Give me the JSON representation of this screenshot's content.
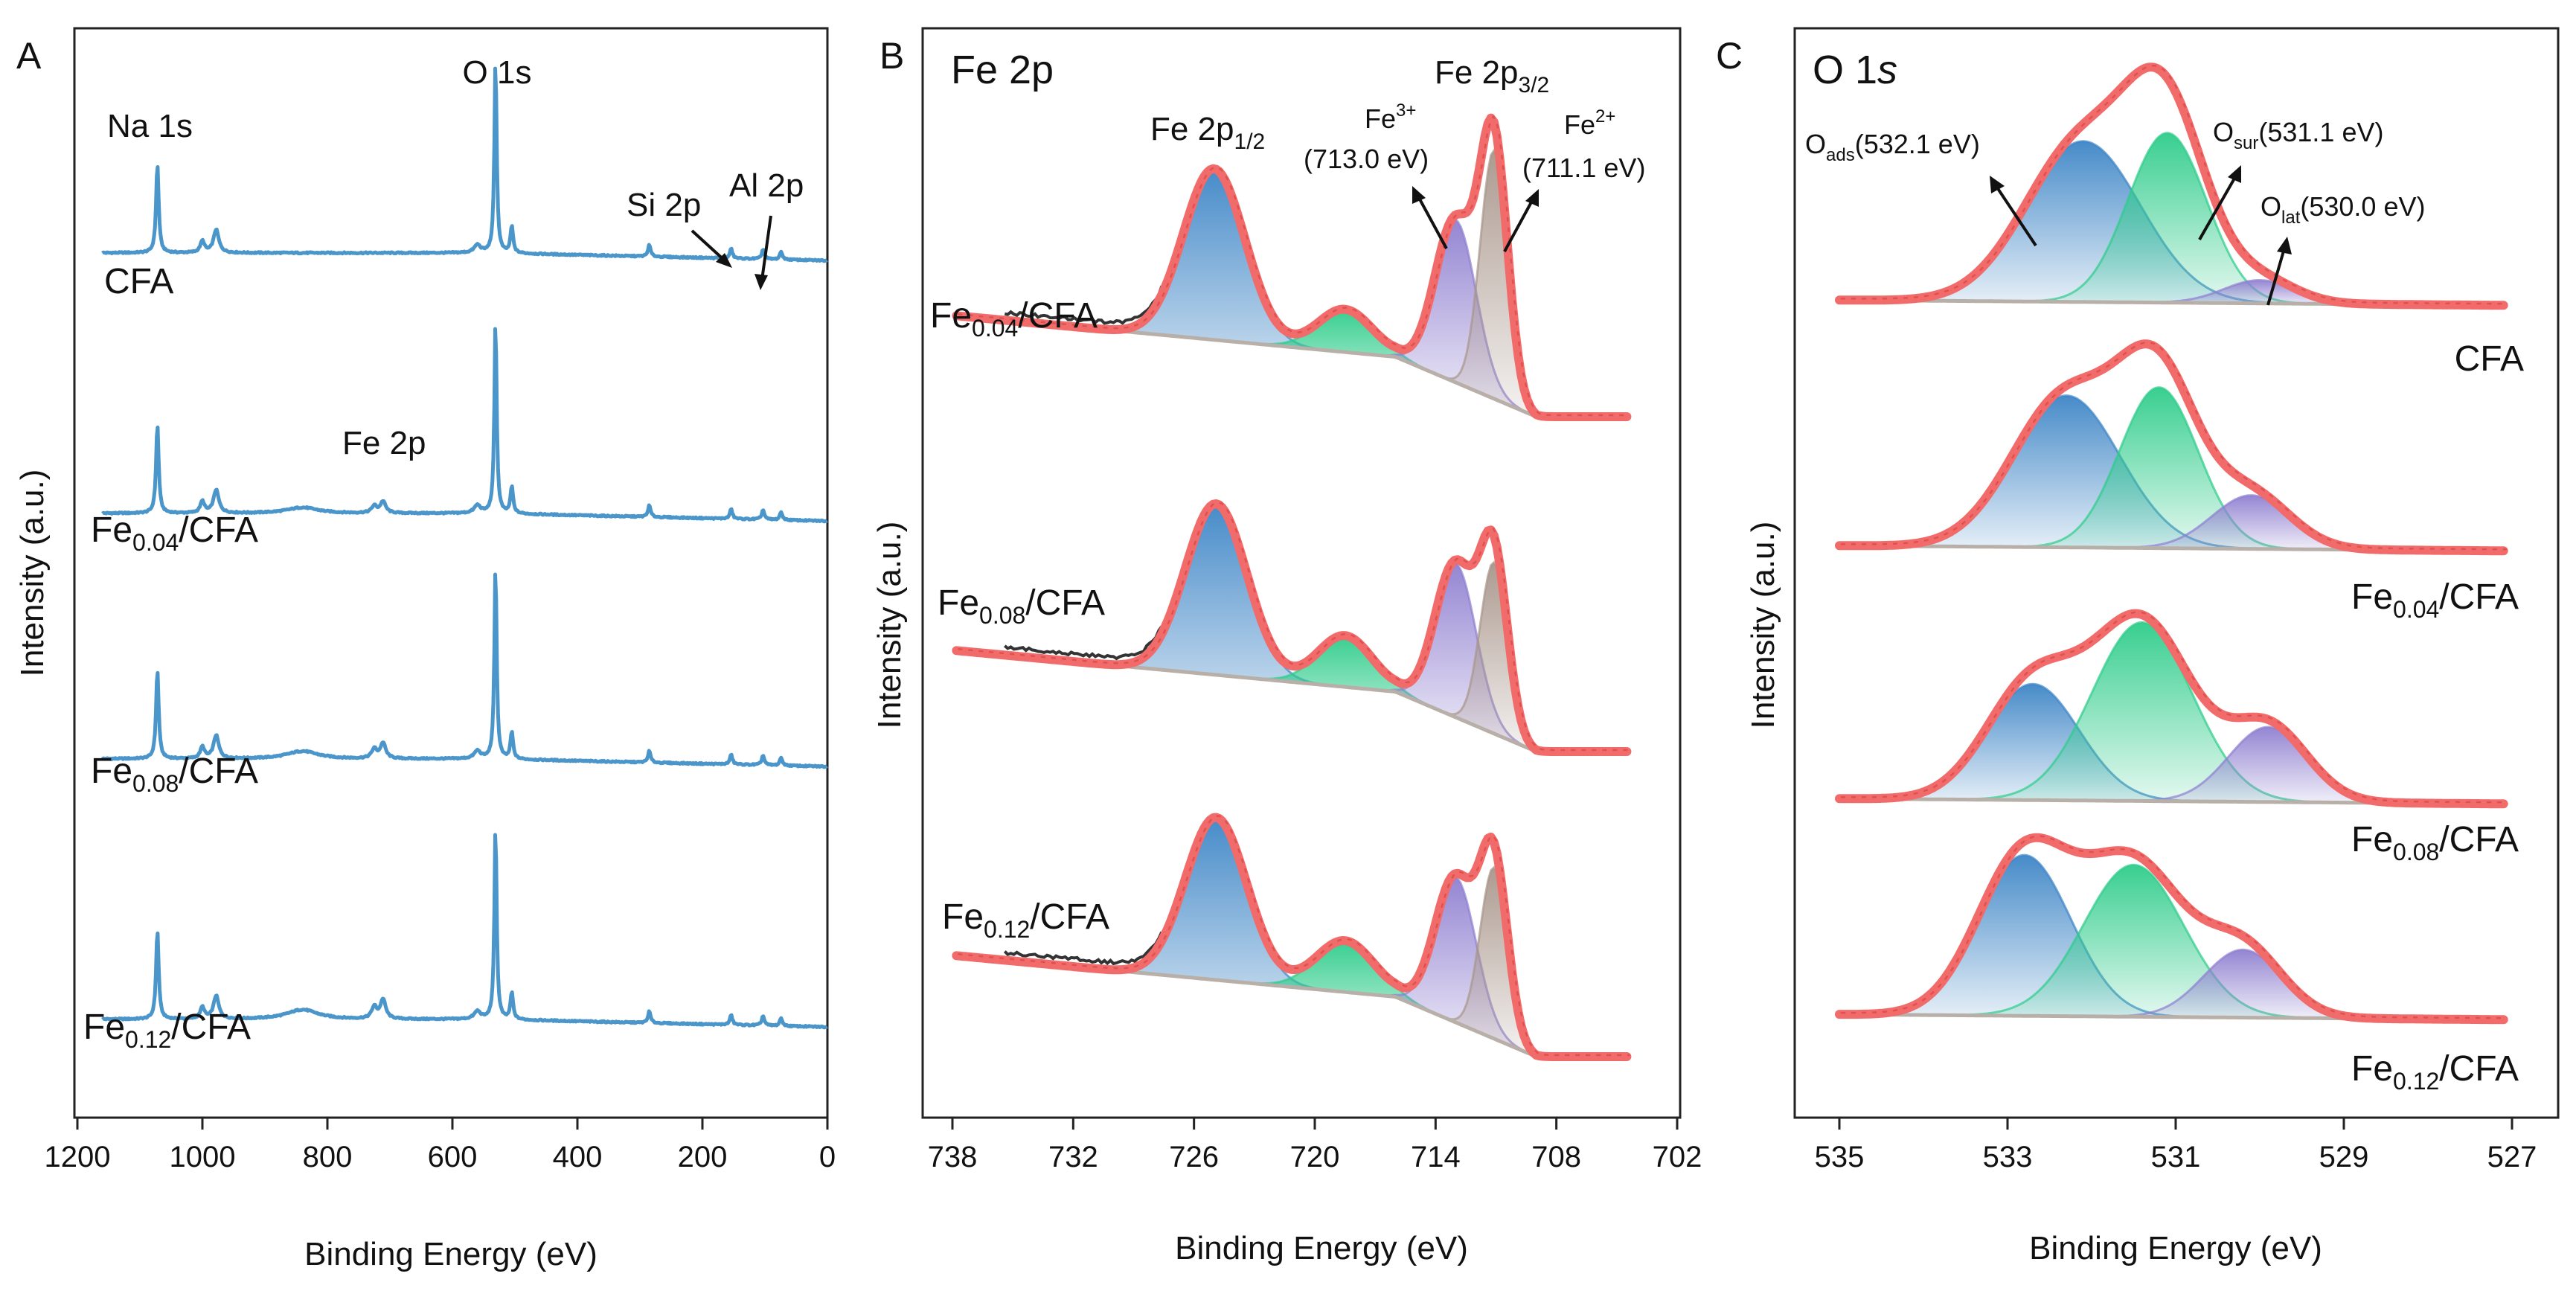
{
  "figure": {
    "panels": {
      "A": {
        "letter": "A",
        "ylabel": "Intensity (a.u.)",
        "xlabel": "Binding Energy (eV)",
        "peak_labels": {
          "o1s": "O 1s",
          "na1s": "Na 1s",
          "si2p": "Si 2p",
          "al2p": "Al 2p",
          "fe2p": "Fe 2p"
        },
        "samples": [
          {
            "name": "CFA",
            "sub": "",
            "suffix": ""
          },
          {
            "name": "Fe",
            "sub": "0.04",
            "suffix": "/CFA"
          },
          {
            "name": "Fe",
            "sub": "0.08",
            "suffix": "/CFA"
          },
          {
            "name": "Fe",
            "sub": "0.12",
            "suffix": "/CFA"
          }
        ]
      },
      "B": {
        "letter": "B",
        "title": "Fe 2p",
        "ylabel": "Intensity (a.u.)",
        "xlabel": "Binding Energy (eV)",
        "fe2p12": {
          "main": "Fe 2p",
          "sub": "1/2"
        },
        "fe2p32": {
          "main": "Fe 2p",
          "sub": "3/2"
        },
        "fe3": {
          "main": "Fe",
          "sup": "3+",
          "energy": "(713.0 eV)"
        },
        "fe2": {
          "main": "Fe",
          "sup": "2+",
          "energy": "(711.1 eV)"
        },
        "samples": [
          {
            "name": "Fe",
            "sub": "0.04",
            "suffix": "/CFA"
          },
          {
            "name": "Fe",
            "sub": "0.08",
            "suffix": "/CFA"
          },
          {
            "name": "Fe",
            "sub": "0.12",
            "suffix": "/CFA"
          }
        ]
      },
      "C": {
        "letter": "C",
        "title_main": "O 1",
        "title_italic": "s",
        "ylabel": "Intensity (a.u.)",
        "xlabel": "Binding Energy (eV)",
        "oads": {
          "main": "O",
          "sub": "ads",
          "energy": "(532.1 eV)"
        },
        "osur": {
          "main": "O",
          "sub": "sur",
          "energy": "(531.1 eV)"
        },
        "olat": {
          "main": "O",
          "sub": "lat",
          "energy": "(530.0 eV)"
        },
        "samples": [
          {
            "name": "CFA",
            "sub": "",
            "suffix": ""
          },
          {
            "name": "Fe",
            "sub": "0.04",
            "suffix": "/CFA"
          },
          {
            "name": "Fe",
            "sub": "0.08",
            "suffix": "/CFA"
          },
          {
            "name": "Fe",
            "sub": "0.12",
            "suffix": "/CFA"
          }
        ]
      }
    }
  },
  "chart_data": [
    {
      "type": "line",
      "panel": "A",
      "title": "",
      "xlabel": "Binding Energy (eV)",
      "ylabel": "Intensity (a.u.)",
      "xlim": [
        1200,
        0
      ],
      "xticks": [
        1200,
        1000,
        800,
        600,
        400,
        200,
        0
      ],
      "color": "#4a95c9",
      "peaks_eV": {
        "Na 1s": 1072,
        "O 1s": 531,
        "Si 2p": 103,
        "Al 2p": 74,
        "Fe 2p": 711
      },
      "series": [
        {
          "name": "CFA",
          "offset": 3,
          "fe": 0.0
        },
        {
          "name": "Fe0.04/CFA",
          "offset": 2,
          "fe": 0.6
        },
        {
          "name": "Fe0.08/CFA",
          "offset": 1,
          "fe": 0.8
        },
        {
          "name": "Fe0.12/CFA",
          "offset": 0,
          "fe": 1.0
        }
      ]
    },
    {
      "type": "line",
      "panel": "B",
      "title": "Fe 2p",
      "xlabel": "Binding Energy (eV)",
      "ylabel": "Intensity (a.u.)",
      "xlim": [
        738,
        702
      ],
      "xticks": [
        738,
        732,
        726,
        720,
        714,
        708,
        702
      ],
      "component_colors": {
        "Fe 2p1/2": "#3d85c6",
        "satellite": "#2ecc8a",
        "Fe3+": "#8f7fd0",
        "Fe2+": "#a8958a",
        "envelope": "#f26b6b"
      },
      "series": [
        {
          "name": "Fe0.04/CFA",
          "components": [
            {
              "label": "Fe 2p1/2",
              "center": 725.0,
              "fwhm": 3.6,
              "height": 1.0
            },
            {
              "label": "satellite",
              "center": 718.5,
              "fwhm": 3.2,
              "height": 0.25
            },
            {
              "label": "Fe3+",
              "center": 713.0,
              "fwhm": 2.4,
              "height": 0.95
            },
            {
              "label": "Fe2+",
              "center": 711.1,
              "fwhm": 1.6,
              "height": 1.45
            }
          ]
        },
        {
          "name": "Fe0.08/CFA",
          "components": [
            {
              "label": "Fe 2p1/2",
              "center": 724.9,
              "fwhm": 3.6,
              "height": 1.0
            },
            {
              "label": "satellite",
              "center": 718.5,
              "fwhm": 3.2,
              "height": 0.3
            },
            {
              "label": "Fe3+",
              "center": 713.0,
              "fwhm": 2.4,
              "height": 0.9
            },
            {
              "label": "Fe2+",
              "center": 711.1,
              "fwhm": 1.6,
              "height": 1.0
            }
          ]
        },
        {
          "name": "Fe0.12/CFA",
          "components": [
            {
              "label": "Fe 2p1/2",
              "center": 724.9,
              "fwhm": 3.6,
              "height": 0.95
            },
            {
              "label": "satellite",
              "center": 718.5,
              "fwhm": 3.4,
              "height": 0.3
            },
            {
              "label": "Fe3+",
              "center": 713.0,
              "fwhm": 2.4,
              "height": 0.85
            },
            {
              "label": "Fe2+",
              "center": 711.1,
              "fwhm": 1.6,
              "height": 1.0
            }
          ]
        }
      ]
    },
    {
      "type": "line",
      "panel": "C",
      "title": "O 1s",
      "xlabel": "Binding Energy (eV)",
      "ylabel": "Intensity (a.u.)",
      "xlim": [
        535,
        527
      ],
      "xticks": [
        535,
        533,
        531,
        529,
        527
      ],
      "component_colors": {
        "O_ads": "#3d85c6",
        "O_sur": "#2ecc8a",
        "O_lat": "#8f7fd0",
        "envelope": "#f26b6b"
      },
      "series": [
        {
          "name": "CFA",
          "components": [
            {
              "label": "O_ads",
              "center": 532.1,
              "fwhm": 1.6,
              "height": 0.9
            },
            {
              "label": "O_sur",
              "center": 531.1,
              "fwhm": 1.1,
              "height": 0.95
            },
            {
              "label": "O_lat",
              "center": 530.0,
              "fwhm": 1.0,
              "height": 0.13
            }
          ]
        },
        {
          "name": "Fe0.04/CFA",
          "components": [
            {
              "label": "O_ads",
              "center": 532.3,
              "fwhm": 1.5,
              "height": 0.85
            },
            {
              "label": "O_sur",
              "center": 531.2,
              "fwhm": 1.1,
              "height": 0.9
            },
            {
              "label": "O_lat",
              "center": 530.1,
              "fwhm": 1.1,
              "height": 0.3
            }
          ]
        },
        {
          "name": "Fe0.08/CFA",
          "components": [
            {
              "label": "O_ads",
              "center": 532.7,
              "fwhm": 1.3,
              "height": 0.65
            },
            {
              "label": "O_sur",
              "center": 531.4,
              "fwhm": 1.4,
              "height": 1.0
            },
            {
              "label": "O_lat",
              "center": 529.9,
              "fwhm": 1.1,
              "height": 0.42
            }
          ]
        },
        {
          "name": "Fe0.12/CFA",
          "components": [
            {
              "label": "O_ads",
              "center": 532.8,
              "fwhm": 1.3,
              "height": 0.9
            },
            {
              "label": "O_sur",
              "center": 531.5,
              "fwhm": 1.4,
              "height": 0.85
            },
            {
              "label": "O_lat",
              "center": 530.2,
              "fwhm": 1.1,
              "height": 0.38
            }
          ]
        }
      ]
    }
  ]
}
